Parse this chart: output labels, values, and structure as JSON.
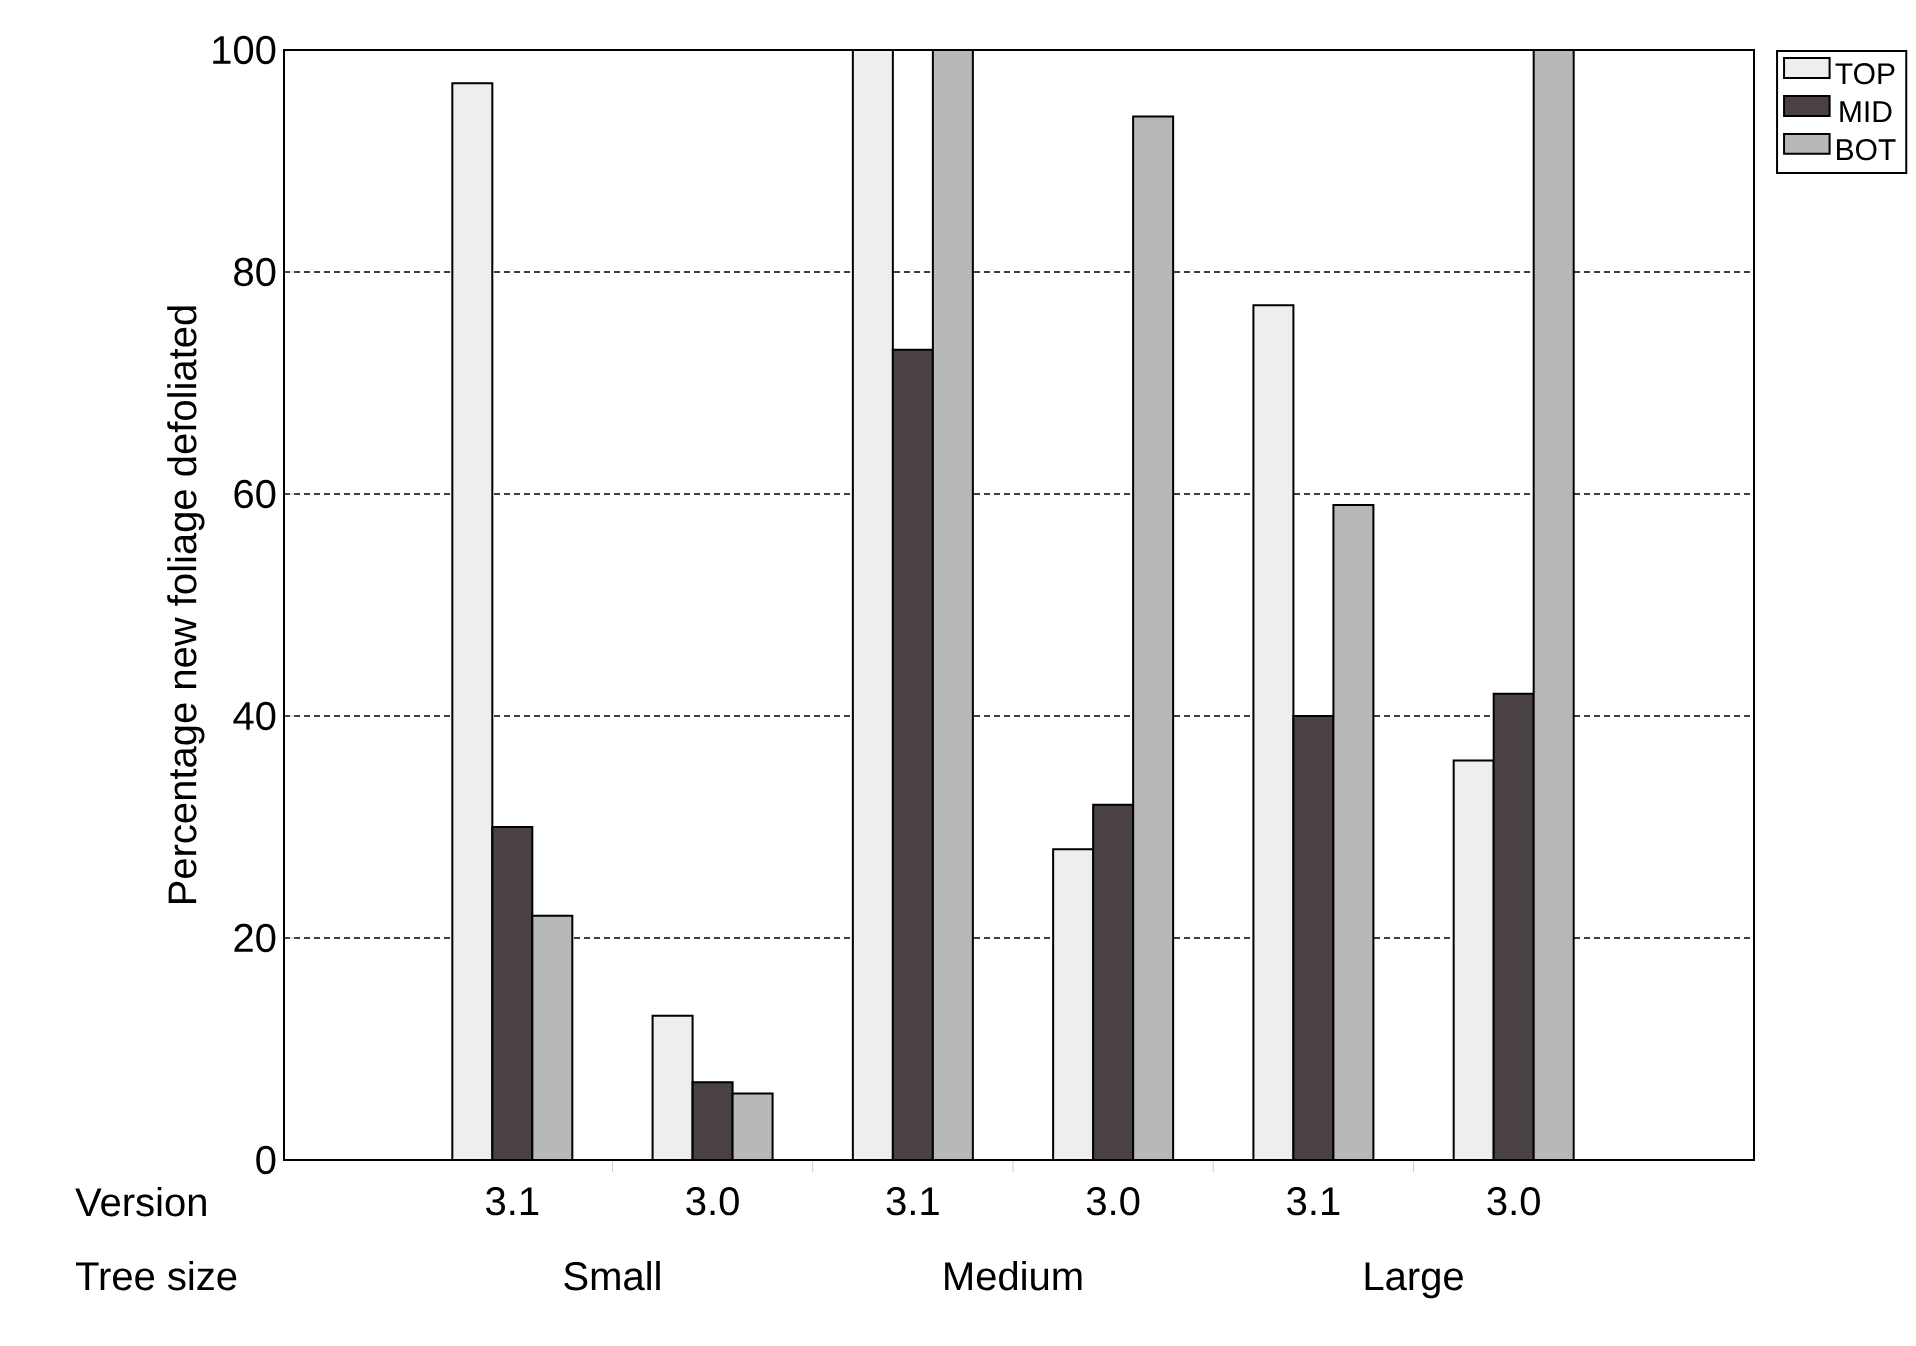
{
  "chart_data": {
    "type": "bar",
    "ylabel": "Percentage new foliage defoliated",
    "categories": [
      "3.1",
      "3.0",
      "3.1",
      "3.0",
      "3.1",
      "3.0"
    ],
    "series": [
      {
        "name": "TOP",
        "color": "#eeeeee",
        "values": [
          97,
          13,
          100,
          28,
          77,
          36
        ]
      },
      {
        "name": "MID",
        "color": "#4a4242",
        "values": [
          30,
          7,
          73,
          32,
          40,
          42
        ]
      },
      {
        "name": "BOT",
        "color": "#b8b8b8",
        "values": [
          22,
          6,
          100,
          94,
          59,
          100
        ]
      }
    ],
    "ylim": [
      0,
      100
    ],
    "yticks": [
      0,
      20,
      40,
      60,
      80,
      100
    ],
    "grid": "y",
    "legend": "top right",
    "annotations": [
      "Version",
      "Tree size",
      "Small",
      "Medium",
      "Large"
    ]
  }
}
